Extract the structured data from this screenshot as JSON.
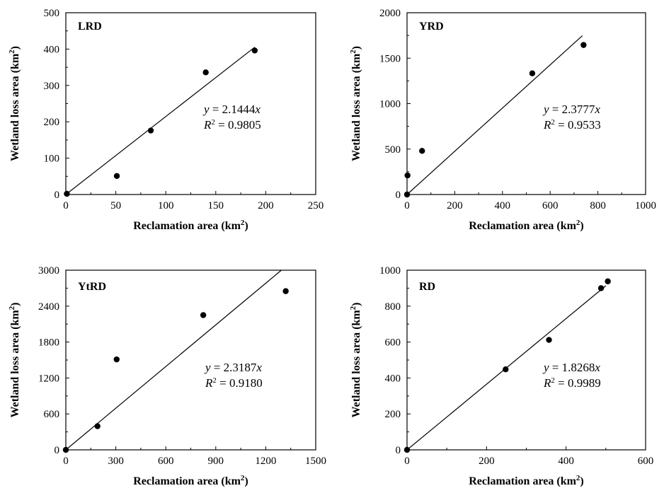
{
  "chart_data": [
    {
      "type": "scatter",
      "panel_label": "LRD",
      "xlabel": "Reclamation area (km²)",
      "ylabel": "Wetland loss area (km²)",
      "xlim": [
        0,
        250
      ],
      "ylim": [
        0,
        500
      ],
      "xticks": [
        0,
        50,
        100,
        150,
        200,
        250
      ],
      "yticks": [
        0,
        100,
        200,
        300,
        400,
        500
      ],
      "points": [
        [
          1,
          2
        ],
        [
          51,
          51
        ],
        [
          85,
          176
        ],
        [
          140,
          336
        ],
        [
          189,
          396
        ]
      ],
      "fit": {
        "slope": 2.1444,
        "x_range": [
          0,
          189
        ]
      },
      "equation": "y = 2.1444x",
      "r2_label": "R² = 0.9805"
    },
    {
      "type": "scatter",
      "panel_label": "YRD",
      "xlabel": "Reclamation area (km²)",
      "ylabel": "Wetland loss area (km²)",
      "xlim": [
        0,
        1000
      ],
      "ylim": [
        0,
        2000
      ],
      "xticks": [
        0,
        200,
        400,
        600,
        800,
        1000
      ],
      "yticks": [
        0,
        500,
        1000,
        1500,
        2000
      ],
      "points": [
        [
          0,
          0
        ],
        [
          2,
          210
        ],
        [
          63,
          480
        ],
        [
          525,
          1333
        ],
        [
          740,
          1645
        ]
      ],
      "fit": {
        "slope": 2.3777,
        "x_range": [
          0,
          735
        ]
      },
      "equation": "y = 2.3777x",
      "r2_label": "R² = 0.9533"
    },
    {
      "type": "scatter",
      "panel_label": "YtRD",
      "xlabel": "Reclamation area (km²)",
      "ylabel": "Wetland loss area (km²)",
      "xlim": [
        0,
        1500
      ],
      "ylim": [
        0,
        3000
      ],
      "xticks": [
        0,
        300,
        600,
        900,
        1200,
        1500
      ],
      "yticks": [
        0,
        600,
        1200,
        1800,
        2400,
        3000
      ],
      "points": [
        [
          0,
          0
        ],
        [
          190,
          395
        ],
        [
          305,
          1510
        ],
        [
          825,
          2250
        ],
        [
          1320,
          2650
        ]
      ],
      "fit": {
        "slope": 2.3187,
        "x_range": [
          0,
          1294
        ]
      },
      "equation": "y = 2.3187x",
      "r2_label": "R² = 0.9180"
    },
    {
      "type": "scatter",
      "panel_label": "RD",
      "xlabel": "Reclamation area (km²)",
      "ylabel": "Wetland loss area (km²)",
      "xlim": [
        0,
        600
      ],
      "ylim": [
        0,
        1000
      ],
      "xticks": [
        0,
        200,
        400,
        600
      ],
      "yticks": [
        0,
        200,
        400,
        600,
        800,
        1000
      ],
      "points": [
        [
          0,
          0
        ],
        [
          248,
          448
        ],
        [
          357,
          612
        ],
        [
          488,
          900
        ],
        [
          505,
          938
        ]
      ],
      "fit": {
        "slope": 1.8268,
        "x_range": [
          0,
          500
        ]
      },
      "equation": "y = 1.8268x",
      "r2_label": "R² = 0.9989"
    }
  ]
}
